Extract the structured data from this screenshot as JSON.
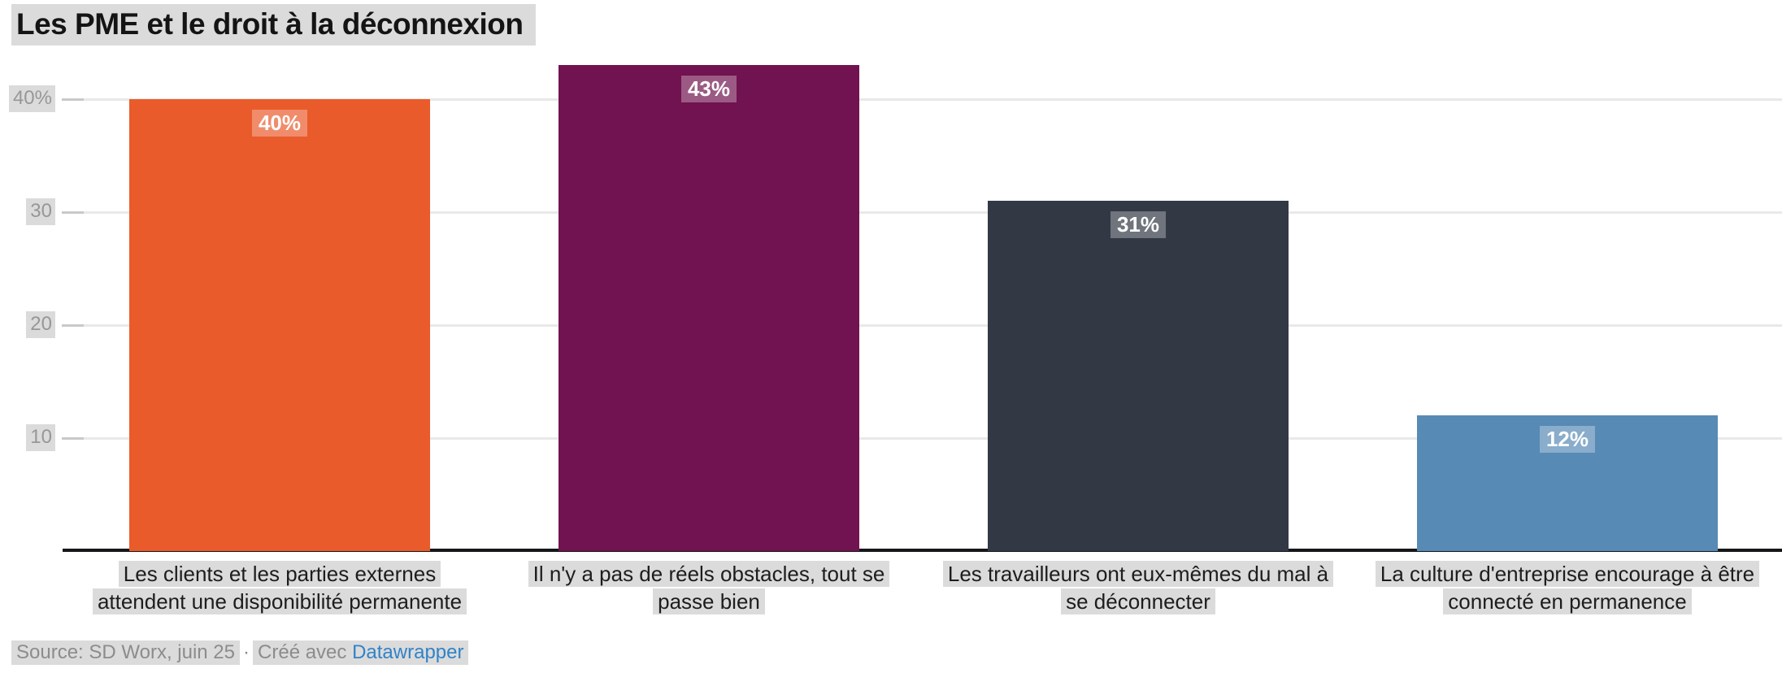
{
  "title": "Les PME et le droit à la déconnexion",
  "chart_data": {
    "type": "bar",
    "title": "Les PME et le droit à la déconnexion",
    "categories": [
      "Les clients et les parties externes attendent une disponibilité permanente",
      "Il n'y a pas de réels obstacles, tout se passe bien",
      "Les travailleurs ont eux-mêmes du mal à se déconnecter",
      "La culture d'entreprise encourage à être connecté en permanence"
    ],
    "values": [
      40,
      43,
      31,
      12
    ],
    "value_labels": [
      "40%",
      "43%",
      "31%",
      "12%"
    ],
    "bar_colors": [
      "#EA5B2B",
      "#701350",
      "#323945",
      "#578AB5"
    ],
    "yticks": [
      10,
      20,
      30,
      40
    ],
    "ytick_labels": [
      "10",
      "20",
      "30",
      "40%"
    ],
    "ylim": [
      0,
      44.5
    ],
    "grid": true,
    "legend": "none",
    "xlabel": "",
    "ylabel": ""
  },
  "footer": {
    "source": "Source: SD Worx, juin 25",
    "separator": "·",
    "credit_prefix": "Créé avec",
    "credit_link": "Datawrapper"
  },
  "colors": {
    "highlight_bg": "#DBDBDB",
    "grid_line": "#E9E9E9",
    "tick_stub": "#C9C9C9",
    "axis_line": "#15161A",
    "ytick_text": "#979797",
    "xtick_text": "#1D1D1D",
    "footer_text": "#8C8C8C",
    "link": "#3183C8",
    "value_label_bg": "rgba(255,255,255,0.3)",
    "value_label_text": "#FFFFFF"
  }
}
